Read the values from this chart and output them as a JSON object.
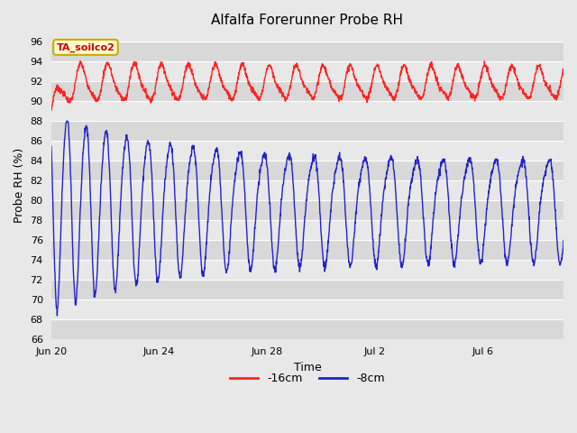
{
  "title": "Alfalfa Forerunner Probe RH",
  "ylabel": "Probe RH (%)",
  "xlabel": "Time",
  "ylim": [
    66,
    97
  ],
  "yticks": [
    66,
    68,
    70,
    72,
    74,
    76,
    78,
    80,
    82,
    84,
    86,
    88,
    90,
    92,
    94,
    96
  ],
  "bg_outer": "#e8e8e8",
  "bg_plot": "#e8e8e8",
  "grid_color": "#ffffff",
  "band_colors": [
    "#e0e0e0",
    "#ebebeb"
  ],
  "annotation_text": "TA_soilco2",
  "annotation_bg": "#ffffcc",
  "annotation_border": "#ccaa00",
  "annotation_text_color": "#cc0000",
  "red_color": "#ff2222",
  "blue_color": "#2222cc",
  "legend_labels": [
    "-16cm",
    "-8cm"
  ],
  "x_max": 19,
  "xtick_pos": [
    0,
    4,
    8,
    12,
    16
  ],
  "xtick_labels": [
    "Jun 20",
    "Jun 24",
    "Jun 28",
    "Jul 2",
    "Jul 6"
  ]
}
